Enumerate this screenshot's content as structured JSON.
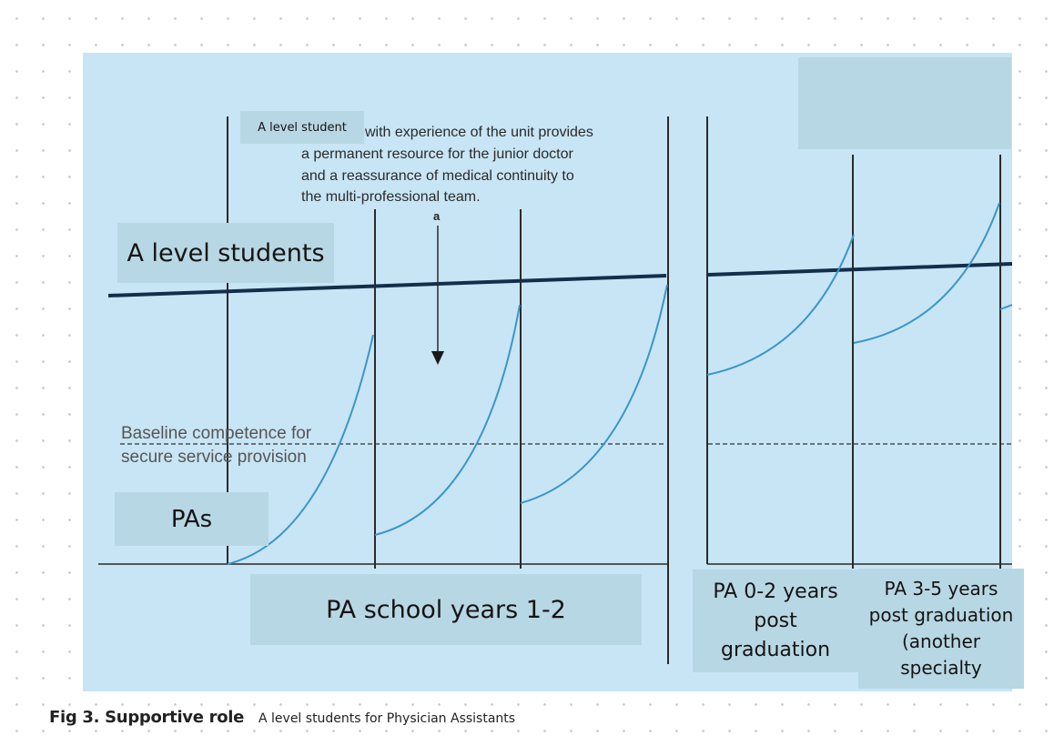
{
  "explanatory_text": [
    "with experience of the unit provides",
    "a permanent resource for the junior doctor",
    "and a reassurance of medical continuity to",
    "the multi-professional team."
  ],
  "arrow_label": "a",
  "baseline_label": [
    "Baseline competence for",
    "secure service provision"
  ],
  "overlays": {
    "a_level_student": "A level student",
    "a_level_students": "A level students",
    "pas": "PAs",
    "pa_school": "PA school years 1-2",
    "pa_0_2": [
      "PA 0-2 years",
      "post",
      "graduation"
    ],
    "pa_3_5": [
      "PA 3-5 years",
      "post graduation",
      "(another",
      "specialty"
    ]
  },
  "caption": {
    "bold": "Fig 3. Supportive role",
    "rest": "A level students for Physician Assistants"
  },
  "colors": {
    "panel": "#c8e5f5",
    "overlay_box": "#b8d7e4",
    "competence_curve": "#3a96c8",
    "reference_line": "#142e4a",
    "divider": "#2a2a2a"
  }
}
